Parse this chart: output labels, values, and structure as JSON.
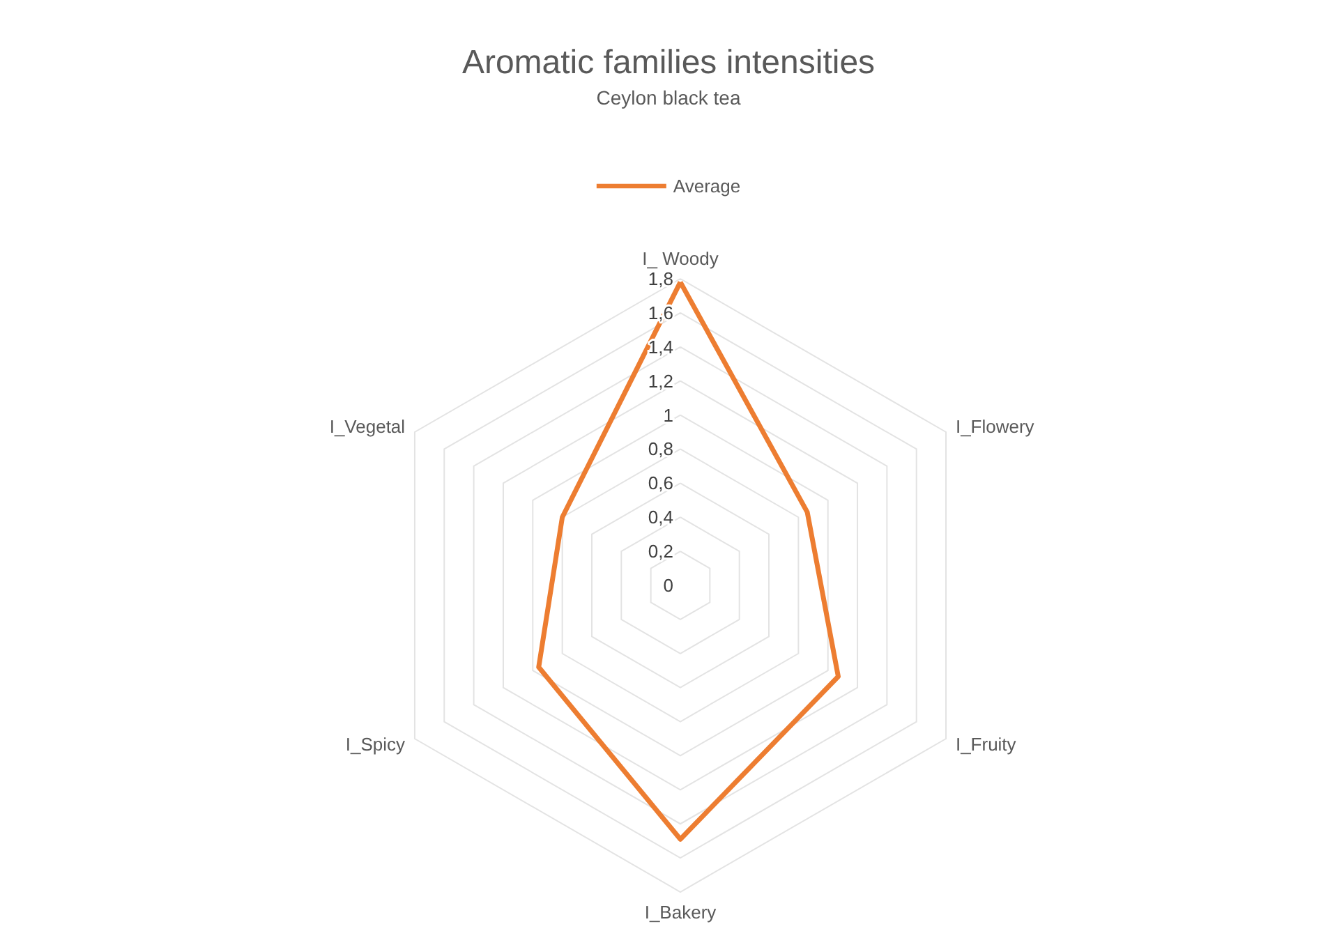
{
  "chart_data": {
    "type": "radar",
    "title": "Aromatic families intensities",
    "subtitle": "Ceylon black tea",
    "categories": [
      "I_ Woody",
      "I_Flowery",
      "I_Fruity",
      "I_Bakery",
      "I_Spicy",
      "I_Vegetal"
    ],
    "series": [
      {
        "name": "Average",
        "color": "#ed7d31",
        "values": [
          1.78,
          0.86,
          1.07,
          1.49,
          0.96,
          0.8
        ]
      }
    ],
    "ylim": [
      0,
      1.8
    ],
    "yticks": [
      {
        "value": 0,
        "label": "0"
      },
      {
        "value": 0.2,
        "label": "0,2"
      },
      {
        "value": 0.4,
        "label": "0,4"
      },
      {
        "value": 0.6,
        "label": "0,6"
      },
      {
        "value": 0.8,
        "label": "0,8"
      },
      {
        "value": 1,
        "label": "1"
      },
      {
        "value": 1.2,
        "label": "1,2"
      },
      {
        "value": 1.4,
        "label": "1,4"
      },
      {
        "value": 1.6,
        "label": "1,6"
      },
      {
        "value": 1.8,
        "label": "1,8"
      }
    ],
    "grid": true,
    "legend": "top",
    "marker": "none",
    "line_style": "solid"
  }
}
